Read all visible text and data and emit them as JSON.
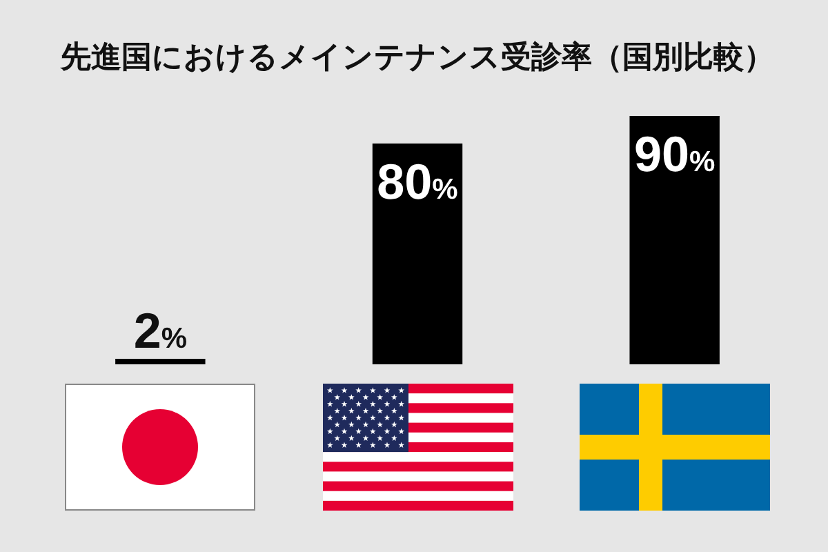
{
  "chart_data": {
    "type": "bar",
    "title": "先進国におけるメインテナンス受診率（国別比較）",
    "categories": [
      null,
      null,
      null
    ],
    "values": [
      2,
      80,
      90
    ],
    "color": "#000000",
    "value_labels": [
      "2%",
      "80%",
      "90%"
    ],
    "tick_labels": false,
    "legend": false
  }
}
